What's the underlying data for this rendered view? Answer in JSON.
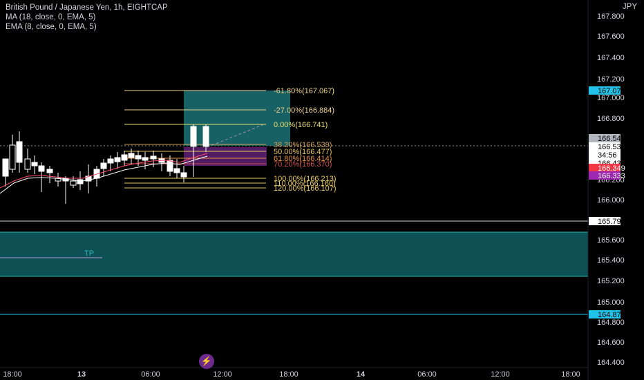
{
  "header": {
    "symbol_title": "British Pound / Japanese Yen, 1h, EIGHTCAP",
    "indicator_ma": "MA (18, close, 0, EMA, 5)",
    "indicator_ema": "EMA (8, close, 0, EMA, 5)",
    "currency": "JPY"
  },
  "price_axis": {
    "ticks": [
      "167.800",
      "167.600",
      "167.400",
      "167.200",
      "167.000",
      "166.800",
      "166.200",
      "166.000",
      "165.600",
      "165.400",
      "165.200",
      "165.000",
      "164.800",
      "164.600",
      "164.400"
    ],
    "markers": [
      {
        "label": "167.070",
        "bg": "#22c1e8",
        "fg": "#000000"
      },
      {
        "label": "166.540",
        "bg": "#b2b5be",
        "fg": "#000000"
      },
      {
        "label": "166.530",
        "bg": "#ffffff",
        "fg": "#000000"
      },
      {
        "label": "34:56",
        "bg": "#ffffff",
        "fg": "#000000"
      },
      {
        "label": "166.432",
        "bg": "#ffffff",
        "fg": "#000000"
      },
      {
        "label": "166.349",
        "bg": "#f23645",
        "fg": "#ffffff"
      },
      {
        "label": "166.333",
        "bg": "#9c27b0",
        "fg": "#ffffff"
      },
      {
        "label": "165.792",
        "bg": "#ffffff",
        "fg": "#000000"
      },
      {
        "label": "164.873",
        "bg": "#22c1e8",
        "fg": "#000000"
      }
    ]
  },
  "time_axis": {
    "labels": [
      "18:00",
      "13",
      "06:00",
      "12:00",
      "18:00",
      "14",
      "06:00",
      "12:00",
      "18:00"
    ]
  },
  "fib_levels": [
    {
      "label": "-61.80%(167.067)",
      "color": "#f0d28c"
    },
    {
      "label": "-27.00%(166.884)",
      "color": "#f0d28c"
    },
    {
      "label": "0.00%(166.741)",
      "color": "#e8e070"
    },
    {
      "label": "38.20%(166.539)",
      "color": "#d4a054"
    },
    {
      "label": "50.00%(166.477)",
      "color": "#e8c860"
    },
    {
      "label": "61.80%(166.414)",
      "color": "#e89040"
    },
    {
      "label": "70.20%(166.370)",
      "color": "#d05050"
    },
    {
      "label": "100.00%(166.213)",
      "color": "#e8c860"
    },
    {
      "label": "110.00%(166.160)",
      "color": "#e8c860"
    },
    {
      "label": "120.00%(166.107)",
      "color": "#e8c860"
    }
  ],
  "tp_zone": {
    "label": "TP",
    "color": "#1f8a8f"
  },
  "colors": {
    "candle_up": "#ffffff",
    "candle_down": "#ffffff",
    "ma_line": "#ffffff",
    "ema_line": "#ff4d6d",
    "long_target_zone": "#1a6a6e",
    "stop_zone": "#5a1f6e"
  },
  "bottom": {
    "flash_icon": "lightning-icon"
  }
}
